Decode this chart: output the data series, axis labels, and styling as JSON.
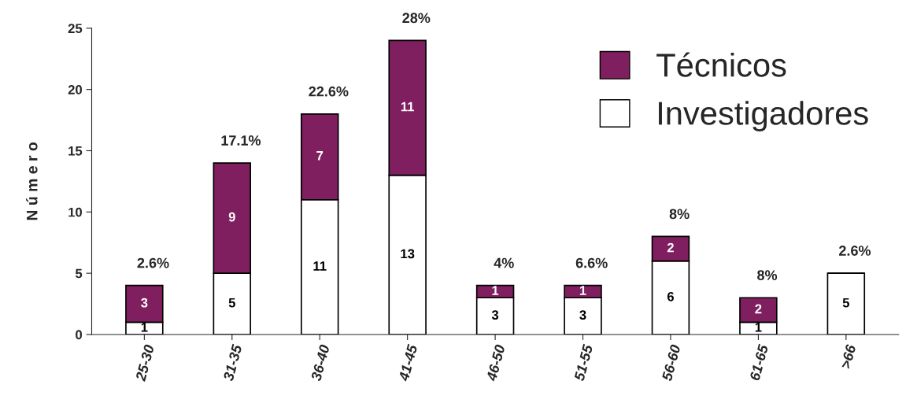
{
  "chart_data": {
    "type": "bar",
    "stacked": true,
    "ylabel": "N ú m e r o",
    "categories": [
      "25-30",
      "31-35",
      "36-40",
      "41-45",
      "46-50",
      "51-55",
      "56-60",
      "61-65",
      ">66"
    ],
    "series": [
      {
        "name": "Investigadores",
        "color": "#ffffff",
        "values": [
          1,
          5,
          11,
          13,
          3,
          3,
          6,
          1,
          5
        ]
      },
      {
        "name": "Técnicos",
        "color": "#7f1f5f",
        "values": [
          3,
          9,
          7,
          11,
          1,
          1,
          2,
          2,
          null
        ]
      }
    ],
    "annotations": [
      {
        "text": "2.6%",
        "x": "25-30",
        "y": 4
      },
      {
        "text": "17.1%",
        "x": "31-35",
        "y": 14
      },
      {
        "text": "22.6%",
        "x": "36-40",
        "y": 18
      },
      {
        "text": "28%",
        "x": "41-45",
        "y": 24
      },
      {
        "text": "4%",
        "x": "46-50",
        "y": 4
      },
      {
        "text": "6.6%",
        "x": "51-55",
        "y": 4
      },
      {
        "text": "8%",
        "x": "56-60",
        "y": 8
      },
      {
        "text": "8%",
        "x": "61-65",
        "y": 3
      },
      {
        "text": "2.6%",
        "x": ">66",
        "y": 5
      }
    ],
    "data_labels": true,
    "ylim": [
      0,
      25
    ],
    "yticks": [
      0,
      5,
      10,
      15,
      20,
      25
    ],
    "grid": false,
    "legend": "top right"
  }
}
